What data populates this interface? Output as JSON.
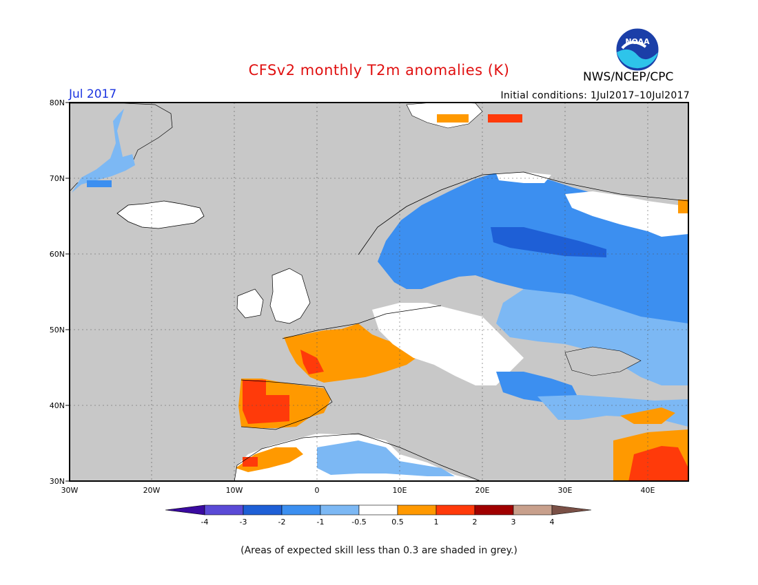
{
  "header": {
    "title": "CFSv2 monthly T2m anomalies (K)",
    "organization": "NWS/NCEP/CPC",
    "logo_text": "NOAA",
    "month": "Jul 2017",
    "initial_conditions": "Initial conditions: 1Jul2017–10Jul2017"
  },
  "map": {
    "region": "Europe",
    "lon_range": [
      -30,
      45
    ],
    "lat_range": [
      30,
      80
    ],
    "lat_ticks": [
      "80N",
      "70N",
      "60N",
      "50N",
      "40N",
      "30N"
    ],
    "lon_ticks": [
      "30W",
      "20W",
      "10W",
      "0",
      "10E",
      "20E",
      "30E",
      "40E"
    ],
    "no_skill_color": "#c8c8c8"
  },
  "colorbar": {
    "labels": [
      "-4",
      "-3",
      "-2",
      "-1",
      "-0.5",
      "0.5",
      "1",
      "2",
      "3",
      "4"
    ],
    "colors": [
      "#3a0aa0",
      "#5a4ad6",
      "#1e5fd6",
      "#3c8ff0",
      "#7cb8f4",
      "#ffffff",
      "#ff9900",
      "#ff3a0a",
      "#a00000",
      "#c8a08c",
      "#7a5046"
    ]
  },
  "footer": {
    "note": "(Areas of expected skill less than 0.3 are shaded in grey.)"
  }
}
